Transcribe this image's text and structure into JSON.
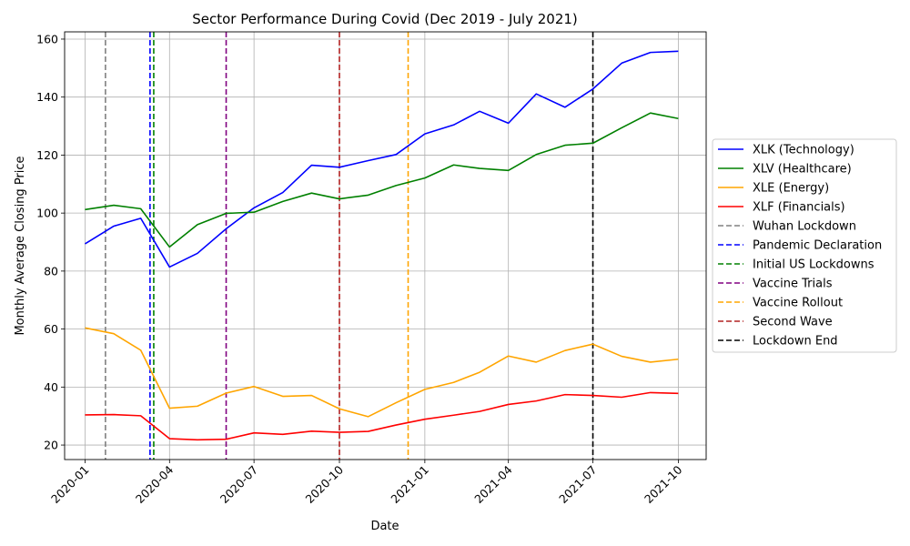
{
  "chart_data": {
    "type": "line",
    "title": "Sector Performance During Covid (Dec 2019 - July 2021)",
    "xlabel": "Date",
    "ylabel": "Monthly Average Closing Price",
    "xlim": [
      "2019-12-10",
      "2021-10-31"
    ],
    "ylim": [
      15,
      162.5
    ],
    "yticks": [
      20,
      40,
      60,
      80,
      100,
      120,
      140,
      160
    ],
    "xticks": [
      {
        "date": "2020-01-01",
        "label": "2020-01"
      },
      {
        "date": "2020-04-01",
        "label": "2020-04"
      },
      {
        "date": "2020-07-01",
        "label": "2020-07"
      },
      {
        "date": "2020-10-01",
        "label": "2020-10"
      },
      {
        "date": "2021-01-01",
        "label": "2021-01"
      },
      {
        "date": "2021-04-01",
        "label": "2021-04"
      },
      {
        "date": "2021-07-01",
        "label": "2021-07"
      },
      {
        "date": "2021-10-01",
        "label": "2021-10"
      }
    ],
    "grid": true,
    "legend_position": "center-right-outside",
    "x": [
      "2020-01-01",
      "2020-02-01",
      "2020-03-01",
      "2020-04-01",
      "2020-05-01",
      "2020-06-01",
      "2020-07-01",
      "2020-08-01",
      "2020-09-01",
      "2020-10-01",
      "2020-11-01",
      "2020-12-01",
      "2021-01-01",
      "2021-02-01",
      "2021-03-01",
      "2021-04-01",
      "2021-05-01",
      "2021-06-01",
      "2021-07-01",
      "2021-08-01",
      "2021-09-01",
      "2021-10-01"
    ],
    "series": [
      {
        "name": "XLK (Technology)",
        "color": "#0000ff",
        "values": [
          89.4,
          95.5,
          98.2,
          81.4,
          86.1,
          94.6,
          101.8,
          107.1,
          116.5,
          115.8,
          118.1,
          120.2,
          127.3,
          130.4,
          135.1,
          131.0,
          141.1,
          136.5,
          142.8,
          151.7,
          155.4,
          155.8
        ]
      },
      {
        "name": "XLV (Healthcare)",
        "color": "#008000",
        "values": [
          101.2,
          102.7,
          101.5,
          88.3,
          96.0,
          99.9,
          100.3,
          104.0,
          106.9,
          104.9,
          106.2,
          109.5,
          112.1,
          116.6,
          115.4,
          114.7,
          120.2,
          123.4,
          124.1,
          129.4,
          134.5,
          132.6
        ]
      },
      {
        "name": "XLE (Energy)",
        "color": "#ffa500",
        "values": [
          60.4,
          58.4,
          52.7,
          32.7,
          33.4,
          37.9,
          40.2,
          36.8,
          37.1,
          32.5,
          29.8,
          34.6,
          39.2,
          41.6,
          45.1,
          50.7,
          48.6,
          52.6,
          54.8,
          50.6,
          48.6,
          49.6
        ]
      },
      {
        "name": "XLF (Financials)",
        "color": "#ff0000",
        "values": [
          30.4,
          30.5,
          30.1,
          22.2,
          21.8,
          22.0,
          24.2,
          23.7,
          24.8,
          24.4,
          24.7,
          26.9,
          28.9,
          30.3,
          31.6,
          34.0,
          35.2,
          37.4,
          37.1,
          36.5,
          38.1,
          37.8
        ]
      }
    ],
    "events": [
      {
        "name": "Wuhan Lockdown",
        "date": "2020-01-23",
        "color": "#808080"
      },
      {
        "name": "Pandemic Declaration",
        "date": "2020-03-11",
        "color": "#0000ff"
      },
      {
        "name": "Initial US Lockdowns",
        "date": "2020-03-15",
        "color": "#008000"
      },
      {
        "name": "Vaccine Trials",
        "date": "2020-06-01",
        "color": "#800080"
      },
      {
        "name": "Vaccine Rollout",
        "date": "2020-12-14",
        "color": "#ffa500"
      },
      {
        "name": "Second Wave",
        "date": "2020-10-01",
        "color": "#b22222"
      },
      {
        "name": "Lockdown End",
        "date": "2021-07-01",
        "color": "#000000"
      }
    ]
  }
}
